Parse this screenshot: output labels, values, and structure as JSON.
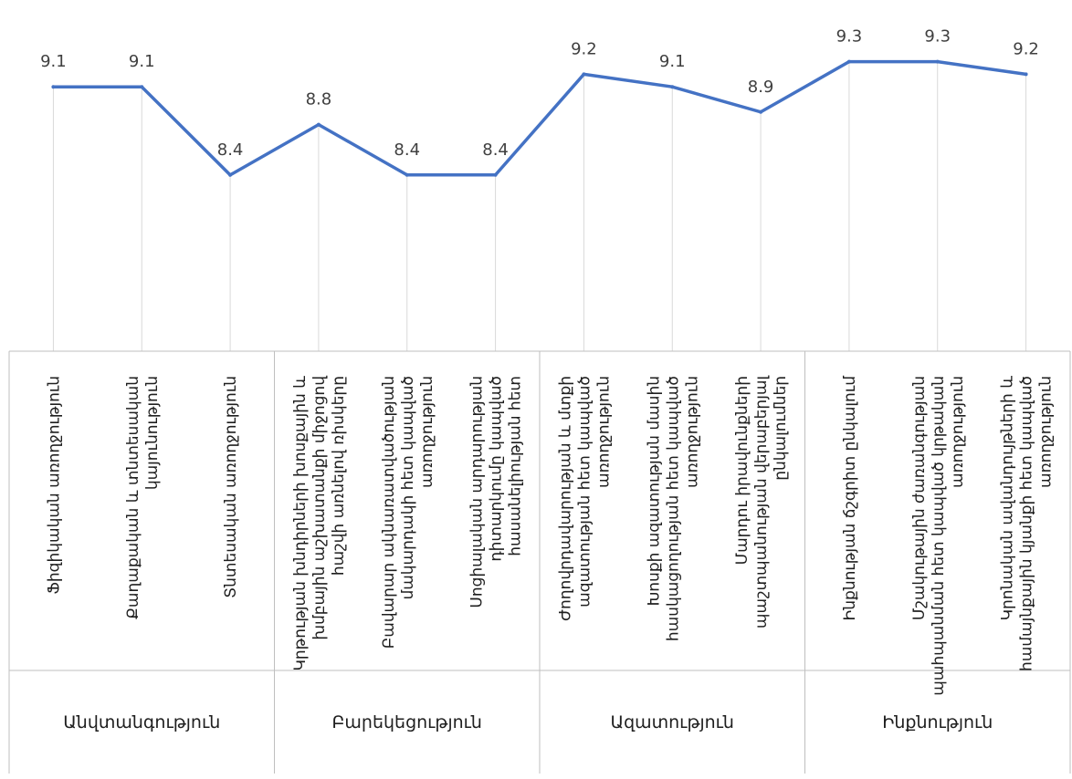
{
  "chart_data": {
    "type": "line",
    "title": "",
    "xlabel": "",
    "ylabel": "",
    "categories": [
      "Ֆիզիկական առողջություն",
      "Քաղաքական և տնտեսական կայունություն",
      "Տնտեսական առողջություն",
      "Կրթության խնդիրների խոսքային և խմբային աշխատանքի միջոցով հաշվի առնելով ռիսկերը",
      "Բավարար ակնառատվածության մակարդակի հետ կապված առողջություն",
      "Սոցիալական արդարության դիտարկումը կապված հասանելիության հետ",
      "Ժողովրդավարության և մտքի ազատության հետ կապված առողջություն",
      "Խոսքի ազատության մասին հասկացողության հետ կապված առողջություն",
      "Մարդու իրավունքների պաշտպանության վերաբերյալ ընկալումներ",
      "Ինքնության ճշգրիտ ընկալում",
      "Մշակութային ժառանգության պահպանման հետ կապված կրթական առողջություն",
      "Կրոնական ավանդույթների և համայնքային կյանքի հետ կապված առողջություն"
    ],
    "groups": [
      {
        "label": "Անվտանգություն",
        "span": 3
      },
      {
        "label": "Բարեկեցություն",
        "span": 3
      },
      {
        "label": "Ազատություն",
        "span": 3
      },
      {
        "label": "Ինքնություն",
        "span": 3
      }
    ],
    "series": [
      {
        "values": [
          9.1,
          9.1,
          8.4,
          8.8,
          8.4,
          8.4,
          9.2,
          9.1,
          8.9,
          9.3,
          9.3,
          9.2
        ]
      }
    ],
    "ylim": [
      7.0,
      9.5
    ],
    "grid": "vertical",
    "legend": "none",
    "colors": {
      "line": "#4472C4",
      "grid": "#d9d9d9",
      "axis": "#bfbfbf",
      "label": "#404040"
    }
  }
}
